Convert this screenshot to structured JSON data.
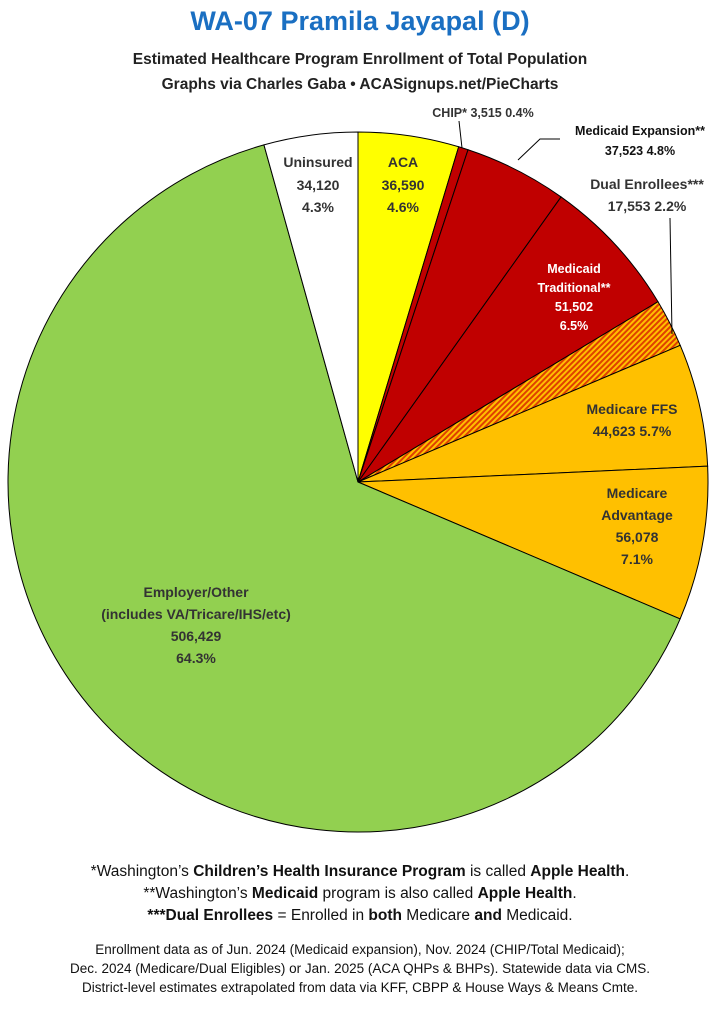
{
  "title": "WA-07 Pramila Jayapal (D)",
  "subtitle1": "Estimated Healthcare Program Enrollment of Total Population",
  "subtitle2": "Graphs via Charles Gaba  •  ACASignups.net/PieCharts",
  "chart_data": {
    "type": "pie",
    "title": "WA-07 Pramila Jayapal (D)",
    "subtitle": "Estimated Healthcare Program Enrollment of Total Population",
    "start": "12 o'clock",
    "direction": "clockwise",
    "slices": [
      {
        "label": "ACA",
        "value": 36590,
        "value_label": "36,590",
        "percent_label": "4.6%",
        "color": "#ffff00",
        "pattern": "solid"
      },
      {
        "label": "CHIP*",
        "value": 3515,
        "value_label": "3,515",
        "percent_label": "0.4%",
        "color": "#c00000",
        "pattern": "solid"
      },
      {
        "label": "Medicaid Expansion**",
        "value": 37523,
        "value_label": "37,523",
        "percent_label": "4.8%",
        "color": "#c00000",
        "pattern": "solid"
      },
      {
        "label": "Medicaid Traditional**",
        "value": 51502,
        "value_label": "51,502",
        "percent_label": "6.5%",
        "color": "#c00000",
        "pattern": "solid"
      },
      {
        "label": "Dual Enrollees***",
        "value": 17553,
        "value_label": "17,553",
        "percent_label": "2.2%",
        "color": "#e07000",
        "pattern": "hatched"
      },
      {
        "label": "Medicare FFS",
        "value": 44623,
        "value_label": "44,623",
        "percent_label": "5.7%",
        "color": "#ffc000",
        "pattern": "solid"
      },
      {
        "label": "Medicare Advantage",
        "value": 56078,
        "value_label": "56,078",
        "percent_label": "7.1%",
        "color": "#ffc000",
        "pattern": "solid"
      },
      {
        "label": "Employer/Other (includes VA/Tricare/IHS/etc)",
        "value": 506429,
        "value_label": "506,429",
        "percent_label": "64.3%",
        "color": "#92d050",
        "pattern": "solid"
      },
      {
        "label": "Uninsured",
        "value": 34120,
        "value_label": "34,120",
        "percent_label": "4.3%",
        "color": "#ffffff",
        "pattern": "solid"
      }
    ]
  },
  "labels": {
    "aca": [
      "ACA",
      "36,590",
      "4.6%"
    ],
    "chip": "CHIP* 3,515 0.4%",
    "medicaid_expansion": [
      "Medicaid Expansion**",
      "37,523 4.8%"
    ],
    "dual": [
      "Dual Enrollees***",
      "17,553 2.2%"
    ],
    "medicaid_traditional": [
      "Medicaid",
      "Traditional**",
      "51,502",
      "6.5%"
    ],
    "medicare_ffs": [
      "Medicare FFS",
      "44,623 5.7%"
    ],
    "medicare_advantage": [
      "Medicare",
      "Advantage",
      "56,078",
      "7.1%"
    ],
    "employer": [
      "Employer/Other",
      "(includes VA/Tricare/IHS/etc)",
      "506,429",
      "64.3%"
    ],
    "uninsured": [
      "Uninsured",
      "34,120",
      "4.3%"
    ]
  },
  "footnotes": {
    "fn1": {
      "a": "*Washington’s ",
      "b": "Children’s Health Insurance Program",
      "c": " is called ",
      "d": "Apple Health",
      "e": "."
    },
    "fn2": {
      "a": "**Washington’s ",
      "b": "Medicaid",
      "c": " program is also called ",
      "d": "Apple Health",
      "e": "."
    },
    "fn3": {
      "a": "***Dual Enrollees",
      "b": " = Enrolled in ",
      "c": "both",
      "d": " Medicare ",
      "e": "and",
      "f": " Medicaid."
    }
  },
  "sources": [
    "Enrollment data as of Jun. 2024 (Medicaid expansion), Nov. 2024 (CHIP/Total Medicaid);",
    "Dec. 2024 (Medicare/Dual Eligibles) or Jan. 2025 (ACA QHPs & BHPs). Statewide data via CMS.",
    "District-level estimates extrapolated from data via KFF, CBPP & House Ways & Means Cmte."
  ]
}
